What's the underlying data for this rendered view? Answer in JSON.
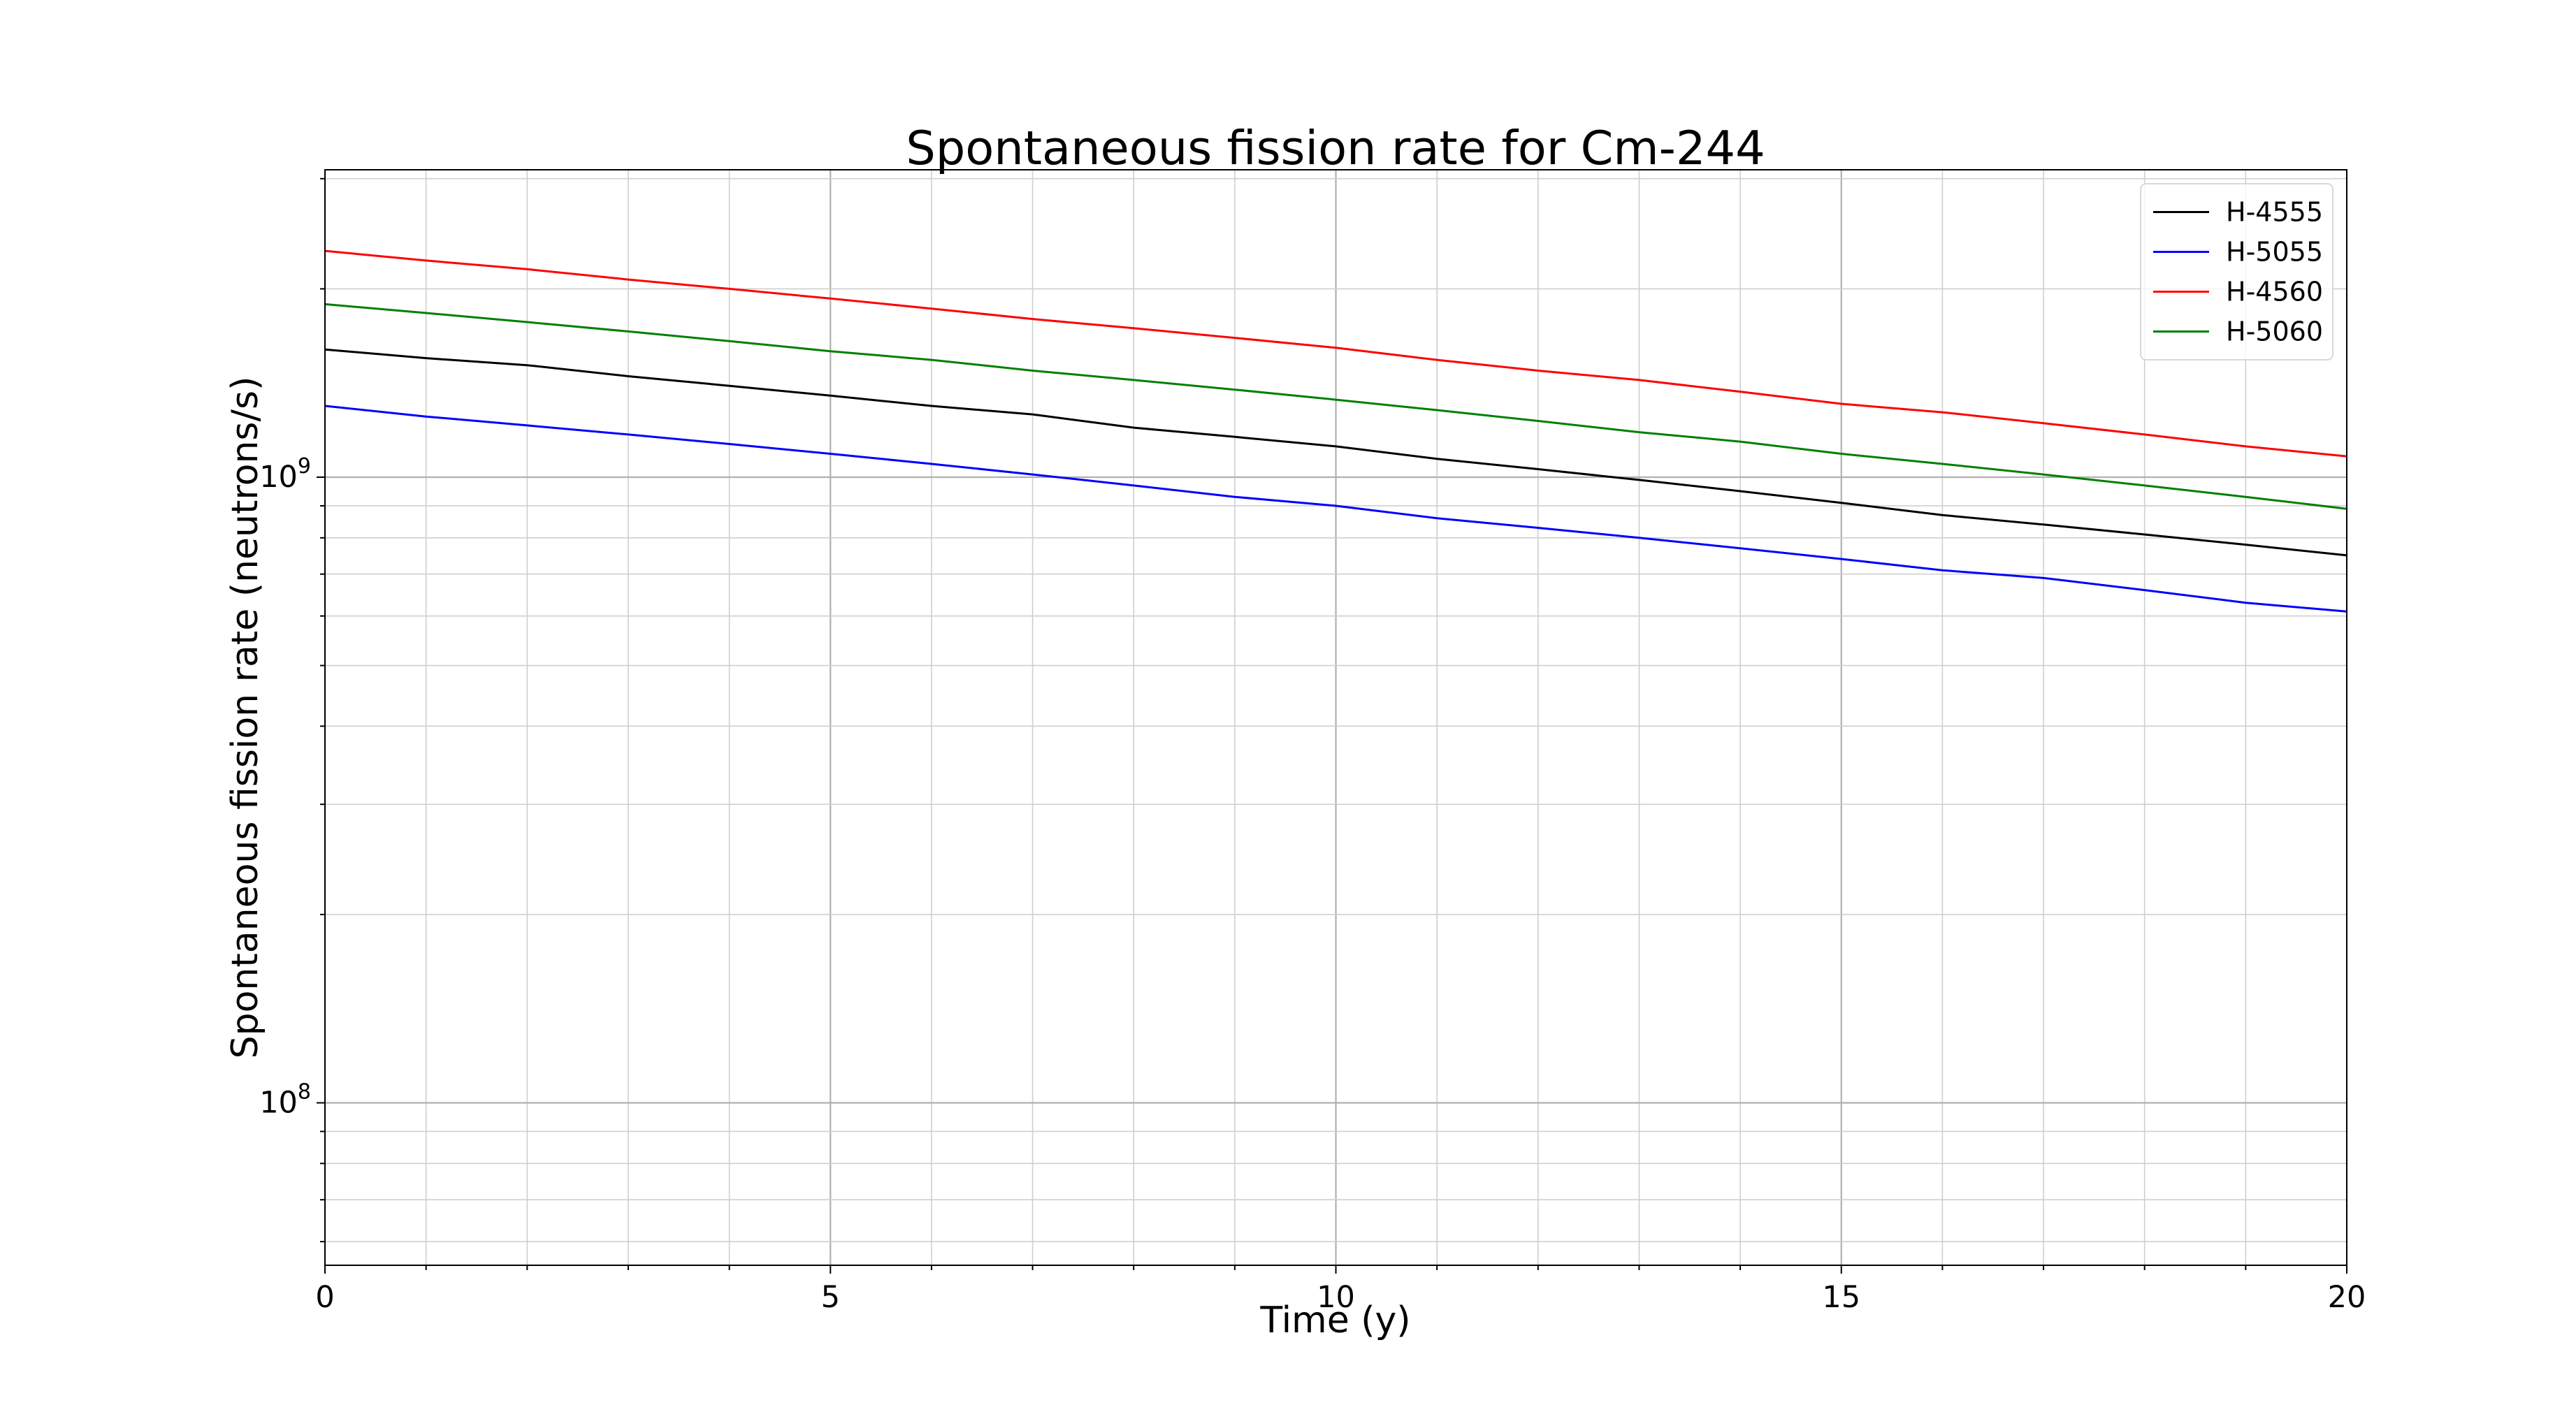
{
  "chart_data": {
    "type": "line",
    "title": "Spontaneous fission rate for Cm-244",
    "xlabel": "Time (y)",
    "ylabel": "Spontaneous fission rate (neutrons/s)",
    "xlim": [
      0,
      20
    ],
    "ylim": [
      55000000,
      3100000000
    ],
    "yscale": "log",
    "grid": true,
    "legend_position": "top-right",
    "x_ticks": [
      "0",
      "5",
      "10",
      "15",
      "20"
    ],
    "y_ticks": [
      {
        "base": "10",
        "exp": "8",
        "value": 100000000
      },
      {
        "base": "10",
        "exp": "9",
        "value": 1000000000
      }
    ],
    "x": [
      0,
      1,
      2,
      3,
      4,
      5,
      6,
      7,
      8,
      9,
      10,
      11,
      12,
      13,
      14,
      15,
      16,
      17,
      18,
      19,
      20
    ],
    "series": [
      {
        "name": "H-4555",
        "color": "#000000",
        "values": [
          1600000000,
          1550000000,
          1510000000,
          1450000000,
          1400000000,
          1350000000,
          1300000000,
          1260000000,
          1200000000,
          1160000000,
          1120000000,
          1070000000,
          1030000000,
          990000000,
          950000000,
          910000000,
          870000000,
          840000000,
          810000000,
          780000000,
          750000000
        ]
      },
      {
        "name": "H-5055",
        "color": "#0000ff",
        "values": [
          1300000000,
          1250000000,
          1210000000,
          1170000000,
          1130000000,
          1090000000,
          1050000000,
          1010000000,
          970000000,
          930000000,
          900000000,
          860000000,
          830000000,
          800000000,
          770000000,
          740000000,
          710000000,
          690000000,
          660000000,
          630000000,
          610000000
        ]
      },
      {
        "name": "H-4560",
        "color": "#ff0000",
        "values": [
          2300000000,
          2220000000,
          2150000000,
          2070000000,
          2000000000,
          1930000000,
          1860000000,
          1790000000,
          1730000000,
          1670000000,
          1610000000,
          1540000000,
          1480000000,
          1430000000,
          1370000000,
          1310000000,
          1270000000,
          1220000000,
          1170000000,
          1120000000,
          1080000000
        ]
      },
      {
        "name": "H-5060",
        "color": "#008000",
        "values": [
          1890000000,
          1830000000,
          1770000000,
          1710000000,
          1650000000,
          1590000000,
          1540000000,
          1480000000,
          1430000000,
          1380000000,
          1330000000,
          1280000000,
          1230000000,
          1180000000,
          1140000000,
          1090000000,
          1050000000,
          1010000000,
          970000000,
          930000000,
          890000000
        ]
      }
    ]
  }
}
